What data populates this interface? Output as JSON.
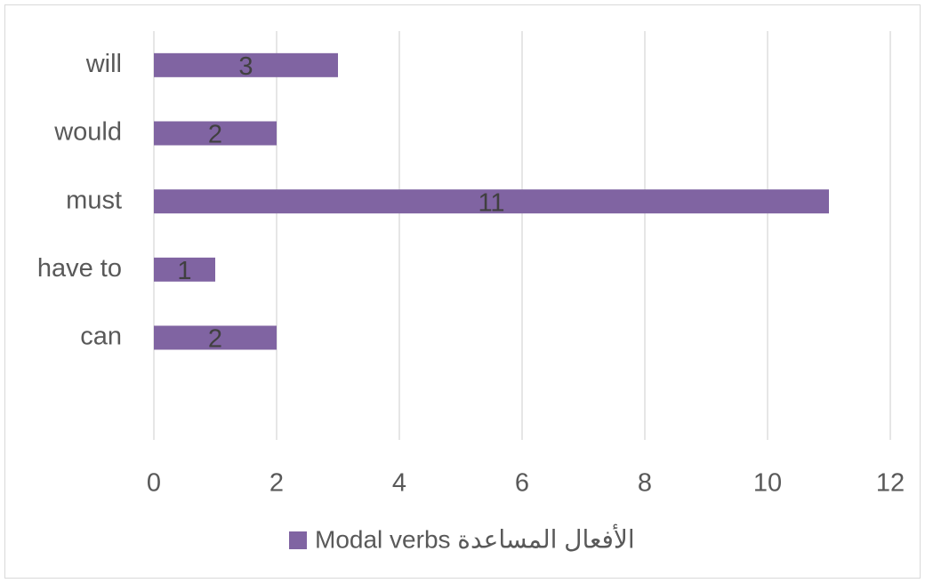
{
  "chart_data": {
    "type": "bar",
    "orientation": "horizontal",
    "categories": [
      "will",
      "would",
      "must",
      "have to",
      "can",
      null
    ],
    "series": [
      {
        "name": "Modal verbs الأفعال المساعدة",
        "color": "#8064a2",
        "values": [
          3,
          2,
          11,
          1,
          2,
          null
        ]
      }
    ],
    "xlim": [
      0,
      12
    ],
    "xticks": [
      0,
      2,
      4,
      6,
      8,
      10,
      12
    ],
    "grid": true,
    "legend": "bottom"
  }
}
